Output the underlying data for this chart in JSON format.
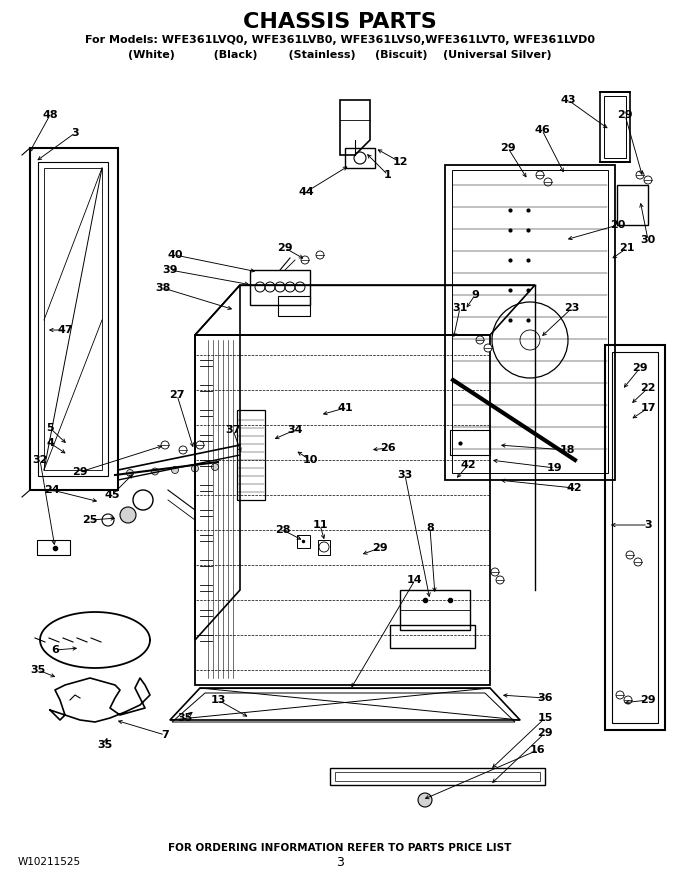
{
  "title": "CHASSIS PARTS",
  "subtitle_line1": "For Models: WFE361LVQ0, WFE361LVB0, WFE361LVS0,WFE361LVT0, WFE361LVD0",
  "subtitle_line2": "(White)          (Black)        (Stainless)     (Biscuit)    (Universal Silver)",
  "footer_top": "FOR ORDERING INFORMATION REFER TO PARTS PRICE LIST",
  "footer_left": "W10211525",
  "footer_center": "3",
  "bg_color": "#ffffff",
  "text_color": "#000000",
  "fig_width": 6.8,
  "fig_height": 8.8,
  "dpi": 100
}
